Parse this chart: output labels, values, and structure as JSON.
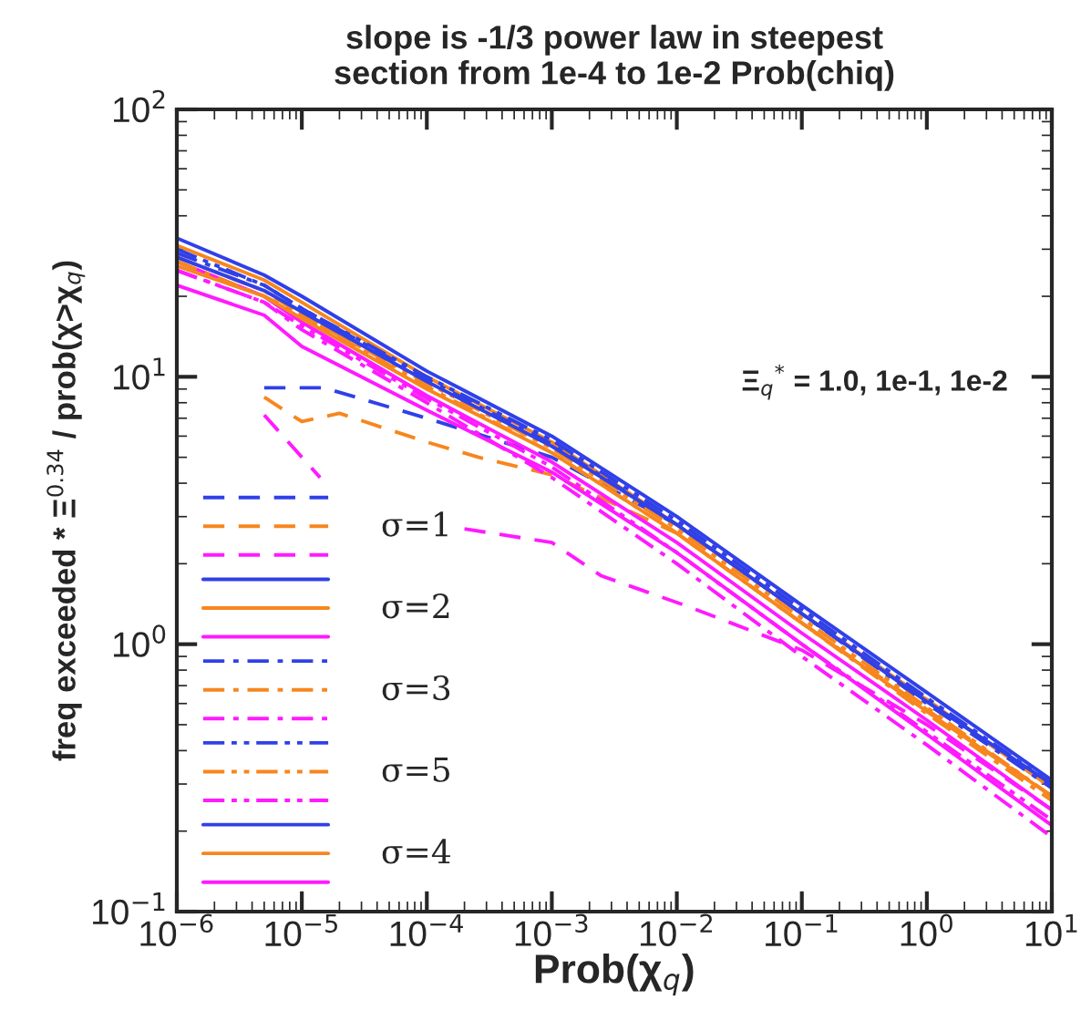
{
  "chart_data": {
    "type": "line",
    "title": "slope is -1/3 power law in steepest\nsection from 1e-4 to 1e-2 Prob(chiq)",
    "xlabel": "Prob(χ$_{q}$)",
    "ylabel": "freq exceeded * Ξ$^{0.34}$ / prob(χ>χ$_{q}$)",
    "annotations": [
      "Ξ$_{q}$$^{*}$ = 1.0, 1e-1, 1e-2"
    ],
    "log": "xy",
    "xlim": [
      1e-06,
      10
    ],
    "ylim": [
      0.1,
      100
    ],
    "xticks": [
      {
        "value": 1e-06,
        "label": "10$^{−6}$"
      },
      {
        "value": 1e-05,
        "label": "10$^{−5}$"
      },
      {
        "value": 0.0001,
        "label": "10$^{−4}$"
      },
      {
        "value": 0.001,
        "label": "10$^{−3}$"
      },
      {
        "value": 0.01,
        "label": "10$^{−2}$"
      },
      {
        "value": 0.1,
        "label": "10$^{−1}$"
      },
      {
        "value": 1,
        "label": "10$^{0}$"
      },
      {
        "value": 10,
        "label": "10$^{1}$"
      }
    ],
    "yticks": [
      {
        "value": 0.1,
        "label": "10$^{−1}$"
      },
      {
        "value": 1,
        "label": "10$^{0}$"
      },
      {
        "value": 10,
        "label": "10$^{1}$"
      },
      {
        "value": 100,
        "label": "10$^{2}$"
      }
    ],
    "grid": false,
    "legend": "bottom left",
    "marker": "none",
    "x": [
      1e-06,
      5e-06,
      1e-05,
      0.0001,
      0.001,
      0.01,
      0.1,
      1,
      10
    ],
    "series": [
      {
        "color": "#3040e8",
        "line_style": "dashed",
        "x": [
          5e-06,
          1.5e-05,
          0.0001,
          0.001,
          0.01,
          0.1,
          1,
          10
        ],
        "values": [
          9.1,
          9.1,
          7,
          5.0,
          2.8,
          1.3,
          0.62,
          0.29
        ]
      },
      {
        "name": "σ=1",
        "color": "#f7861e",
        "line_style": "dashed",
        "x": [
          5e-06,
          1e-05,
          2e-05,
          0.0001,
          0.00026,
          0.001,
          0.01,
          0.1,
          1,
          10
        ],
        "values": [
          8.4,
          6.8,
          7.3,
          5.7,
          5.0,
          4.3,
          2.6,
          1.2,
          0.57,
          0.27
        ]
      },
      {
        "color": "#ff1aff",
        "line_style": "dashed",
        "x": [
          5e-06,
          1.4e-05,
          2e-05,
          0.0002,
          0.001,
          0.0025,
          0.012,
          0.1,
          1,
          10
        ],
        "values": [
          7.2,
          4.2,
          null,
          2.7,
          2.4,
          1.8,
          1.39,
          0.95,
          0.5,
          0.24
        ]
      },
      {
        "color": "#3040e8",
        "line_style": "solid",
        "values": [
          33,
          24,
          20,
          10.5,
          6.0,
          3.0,
          1.4,
          0.66,
          0.31
        ]
      },
      {
        "name": "σ=2",
        "color": "#f7861e",
        "line_style": "solid",
        "values": [
          31,
          23,
          19,
          10,
          5.7,
          2.8,
          1.3,
          0.62,
          0.29
        ]
      },
      {
        "color": "#ff1aff",
        "line_style": "solid",
        "values": [
          27,
          20,
          16,
          8.5,
          4.8,
          2.4,
          1.1,
          0.52,
          0.24
        ]
      },
      {
        "color": "#3040e8",
        "line_style": "dashdot",
        "values": [
          29,
          22,
          18,
          9.8,
          5.6,
          2.8,
          1.3,
          0.6,
          0.29
        ]
      },
      {
        "name": "σ=3",
        "color": "#f7861e",
        "line_style": "dashdot",
        "values": [
          27,
          20,
          17,
          9.2,
          5.2,
          2.6,
          1.2,
          0.55,
          0.26
        ]
      },
      {
        "color": "#ff1aff",
        "line_style": "dashdot",
        "values": [
          25,
          19,
          15,
          8,
          4.2,
          2.0,
          0.9,
          0.42,
          0.19
        ]
      },
      {
        "color": "#3040e8",
        "line_style": "dashdotdot",
        "values": [
          30,
          22,
          18,
          10,
          5.8,
          2.9,
          1.35,
          0.63,
          0.3
        ]
      },
      {
        "name": "σ=5",
        "color": "#f7861e",
        "line_style": "dashdotdot",
        "values": [
          28,
          21,
          17,
          9.5,
          5.4,
          2.7,
          1.25,
          0.58,
          0.27
        ]
      },
      {
        "color": "#ff1aff",
        "line_style": "dashdotdot",
        "values": [
          25,
          19,
          15.5,
          8.3,
          4.6,
          2.2,
          1.0,
          0.47,
          0.22
        ]
      },
      {
        "color": "#3040e8",
        "line_style": "solid",
        "values": [
          28,
          21,
          17.5,
          9.6,
          5.5,
          2.8,
          1.3,
          0.61,
          0.3
        ]
      },
      {
        "name": "σ=4",
        "color": "#f7861e",
        "line_style": "solid",
        "values": [
          26,
          20,
          16.5,
          9,
          5.2,
          2.6,
          1.2,
          0.56,
          0.27
        ]
      },
      {
        "color": "#ff1aff",
        "line_style": "solid",
        "values": [
          22,
          17,
          13,
          7.5,
          4.4,
          2.2,
          1.0,
          0.46,
          0.21
        ]
      }
    ]
  }
}
